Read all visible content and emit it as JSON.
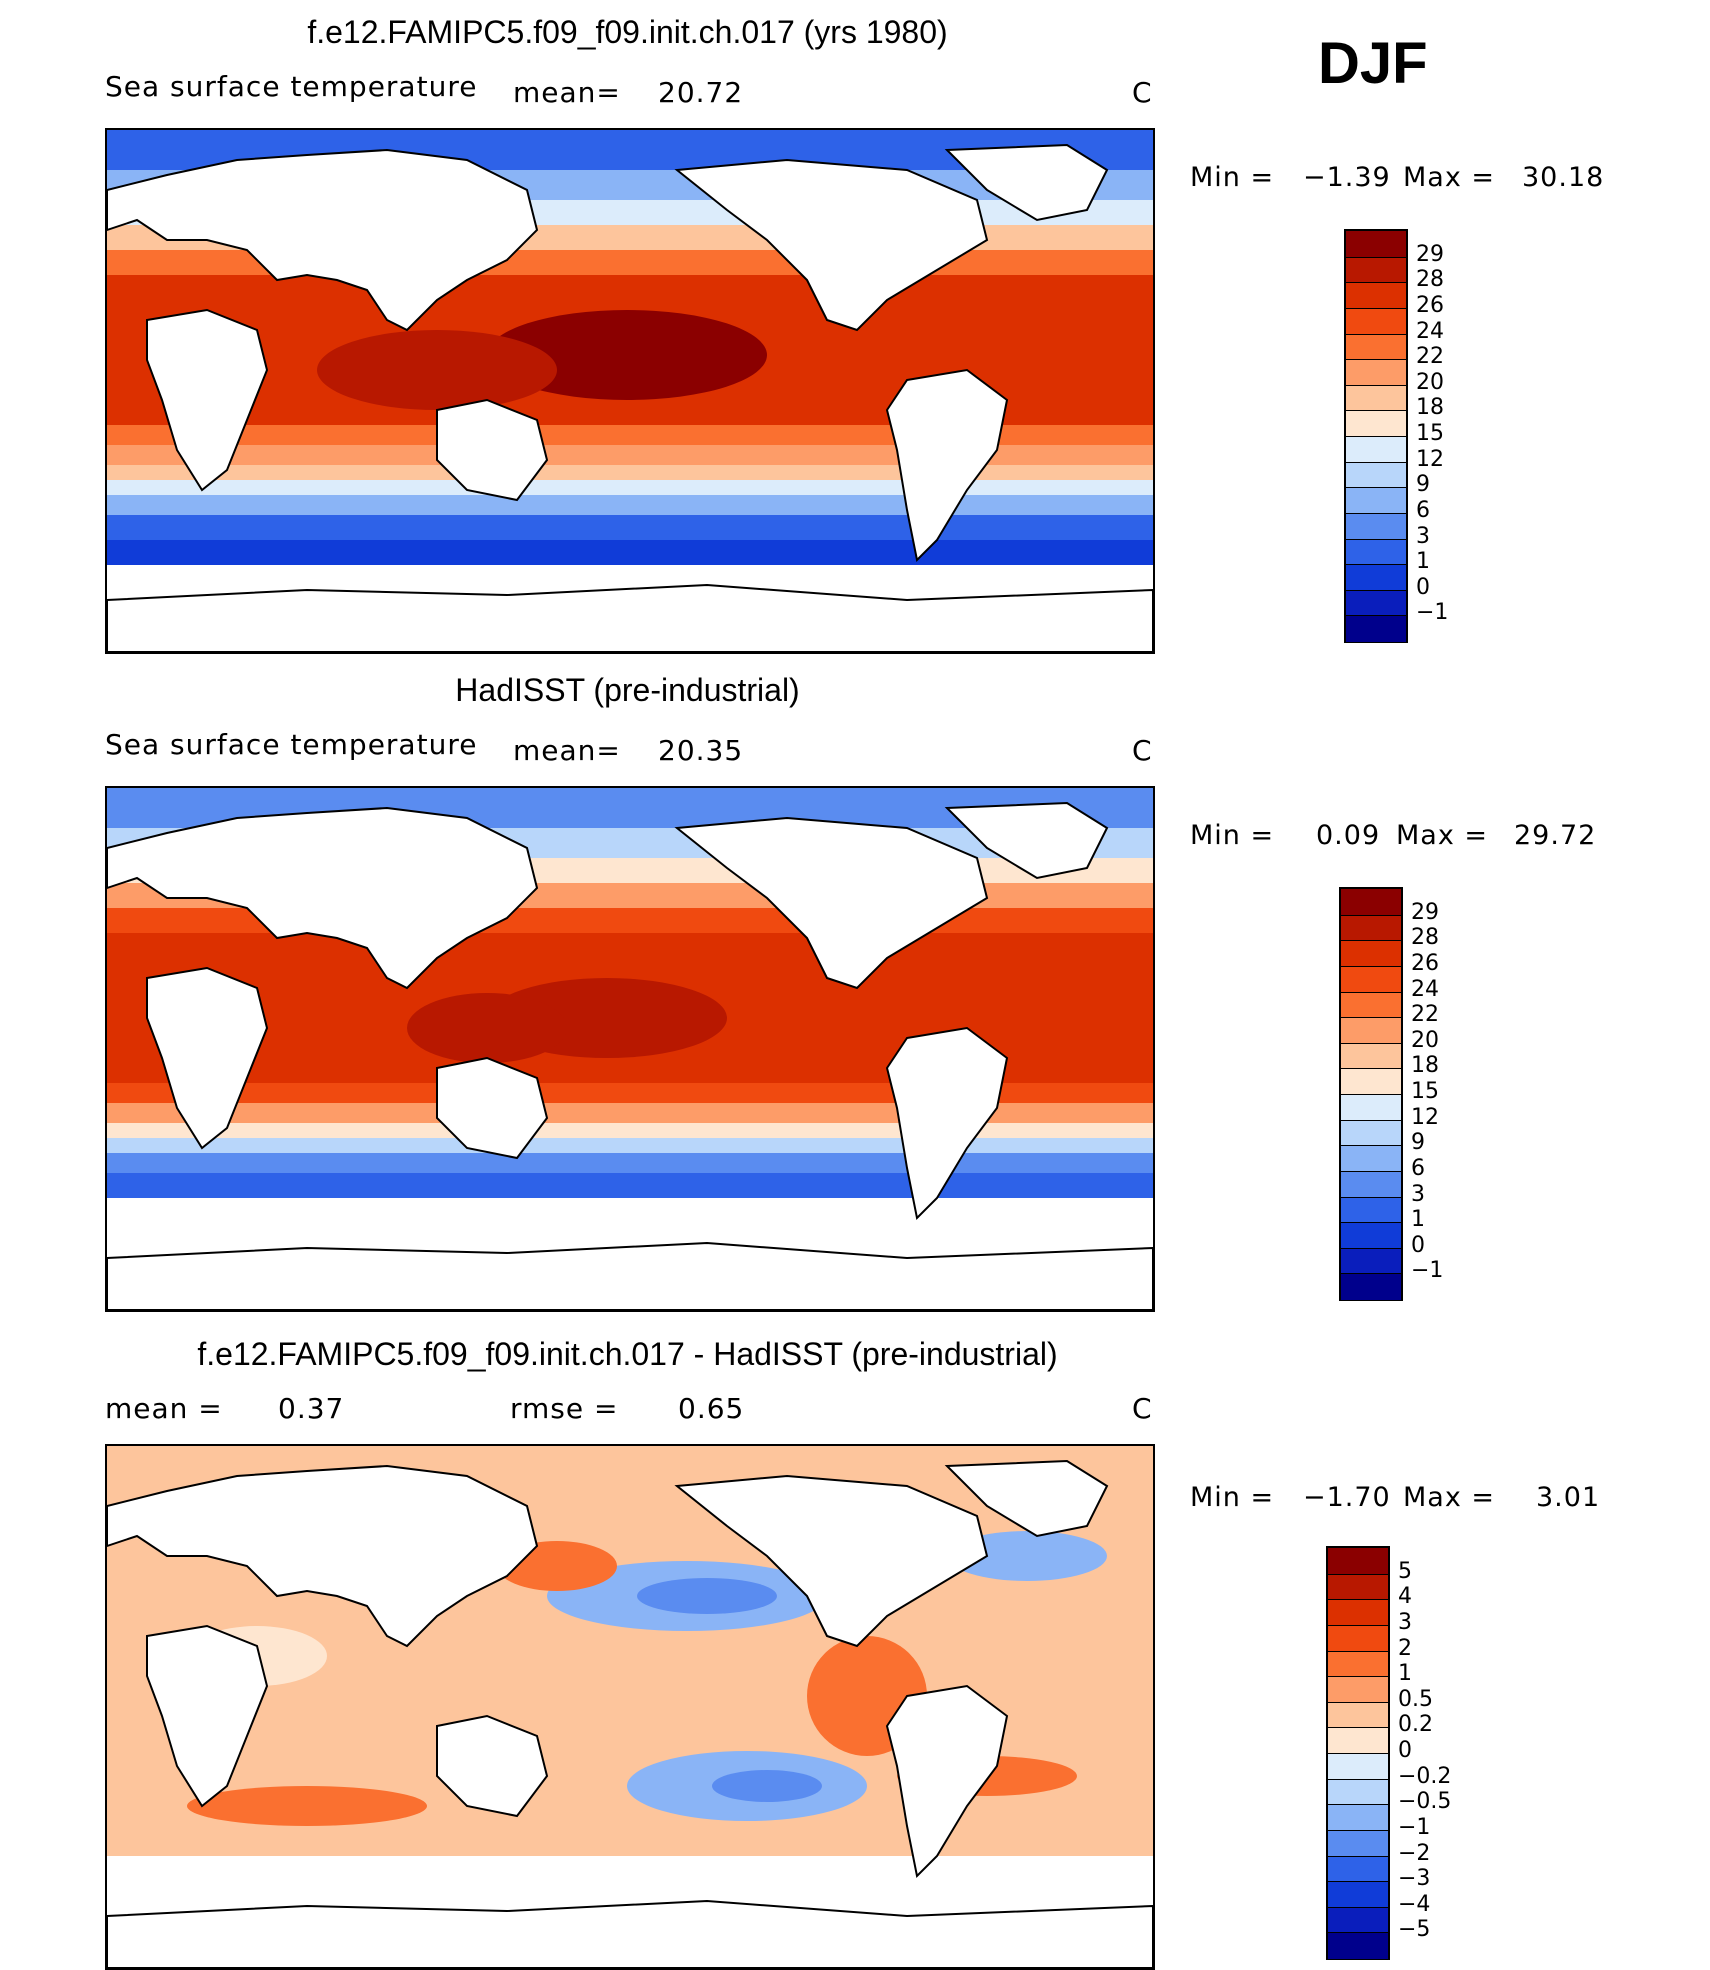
{
  "season": "DJF",
  "panels": [
    {
      "title": "f.e12.FAMIPC5.f09_f09.init.ch.017 (yrs 1980)",
      "left_label": "Sea surface temperature",
      "mid_label": "mean=",
      "mid_value": "20.72",
      "units": "C",
      "min_label": "Min =",
      "min_value": "−1.39",
      "max_label": "Max =",
      "max_value": "30.18",
      "levels": [
        "29",
        "28",
        "26",
        "24",
        "22",
        "20",
        "18",
        "15",
        "12",
        "9",
        "6",
        "3",
        "1",
        "0",
        "−1"
      ],
      "colors": [
        "#8b0000",
        "#b81800",
        "#dc3000",
        "#f04a10",
        "#fa7030",
        "#fd9c68",
        "#fdc59c",
        "#fee6d0",
        "#dcecfb",
        "#b8d6fa",
        "#8ab4f6",
        "#5a8cf0",
        "#2e62e8",
        "#103cd8",
        "#0a1ebc",
        "#00008c"
      ]
    },
    {
      "title": "HadISST (pre-industrial)",
      "left_label": "Sea surface temperature",
      "mid_label": "mean=",
      "mid_value": "20.35",
      "units": "C",
      "min_label": "Min =",
      "min_value": "0.09",
      "max_label": "Max =",
      "max_value": "29.72",
      "levels": [
        "29",
        "28",
        "26",
        "24",
        "22",
        "20",
        "18",
        "15",
        "12",
        "9",
        "6",
        "3",
        "1",
        "0",
        "−1"
      ],
      "colors": [
        "#8b0000",
        "#b81800",
        "#dc3000",
        "#f04a10",
        "#fa7030",
        "#fd9c68",
        "#fdc59c",
        "#fee6d0",
        "#dcecfb",
        "#b8d6fa",
        "#8ab4f6",
        "#5a8cf0",
        "#2e62e8",
        "#103cd8",
        "#0a1ebc",
        "#00008c"
      ]
    },
    {
      "title": "f.e12.FAMIPC5.f09_f09.init.ch.017 - HadISST (pre-industrial)",
      "left_label": "mean =",
      "left_value": "0.37",
      "mid_label": "rmse =",
      "mid_value": "0.65",
      "units": "C",
      "min_label": "Min =",
      "min_value": "−1.70",
      "max_label": "Max =",
      "max_value": "3.01",
      "levels": [
        "5",
        "4",
        "3",
        "2",
        "1",
        "0.5",
        "0.2",
        "0",
        "−0.2",
        "−0.5",
        "−1",
        "−2",
        "−3",
        "−4",
        "−5"
      ],
      "colors": [
        "#8b0000",
        "#b81800",
        "#dc3000",
        "#f04a10",
        "#fa7030",
        "#fd9c68",
        "#fdc59c",
        "#fee6d0",
        "#dcecfb",
        "#b8d6fa",
        "#8ab4f6",
        "#5a8cf0",
        "#2e62e8",
        "#103cd8",
        "#0a1ebc",
        "#00008c"
      ]
    }
  ]
}
